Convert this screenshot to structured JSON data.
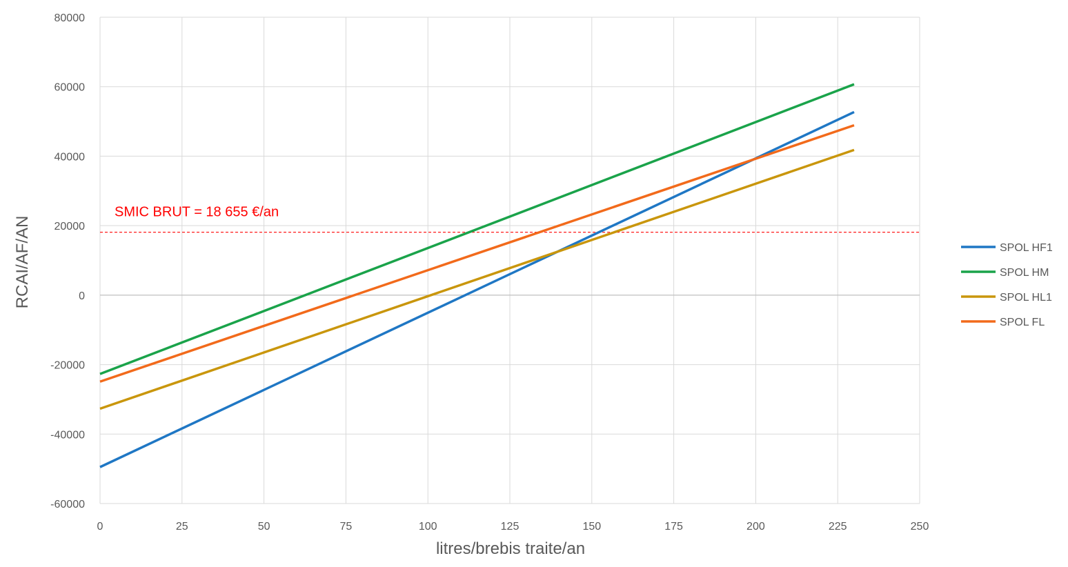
{
  "chart_data": {
    "type": "line",
    "title": "",
    "xlabel": "litres/brebis traite/an",
    "ylabel": "RCAI/AF/AN",
    "xlim": [
      0,
      250
    ],
    "ylim": [
      -60000,
      80000
    ],
    "xticks": [
      0,
      25,
      50,
      75,
      100,
      125,
      150,
      175,
      200,
      225,
      250
    ],
    "yticks": [
      80000,
      60000,
      40000,
      20000,
      0,
      -20000,
      -40000,
      -60000
    ],
    "grid": true,
    "legend_position": "right",
    "series": [
      {
        "name": "SPOL HF1",
        "color": "#1f77c4",
        "x": [
          0,
          230
        ],
        "y": [
          -49500,
          52700
        ]
      },
      {
        "name": "SPOL HM",
        "color": "#1aa34a",
        "x": [
          0,
          230
        ],
        "y": [
          -22700,
          60700
        ]
      },
      {
        "name": "SPOL HL1",
        "color": "#c9960c",
        "x": [
          0,
          230
        ],
        "y": [
          -32700,
          41800
        ]
      },
      {
        "name": "SPOL FL",
        "color": "#f26a1b",
        "x": [
          0,
          230
        ],
        "y": [
          -24900,
          48900
        ]
      }
    ],
    "reference_line": {
      "y": 18100,
      "color": "#ff0000",
      "style": "dashed",
      "label": "SMIC BRUT = 18 655 €/an"
    }
  }
}
